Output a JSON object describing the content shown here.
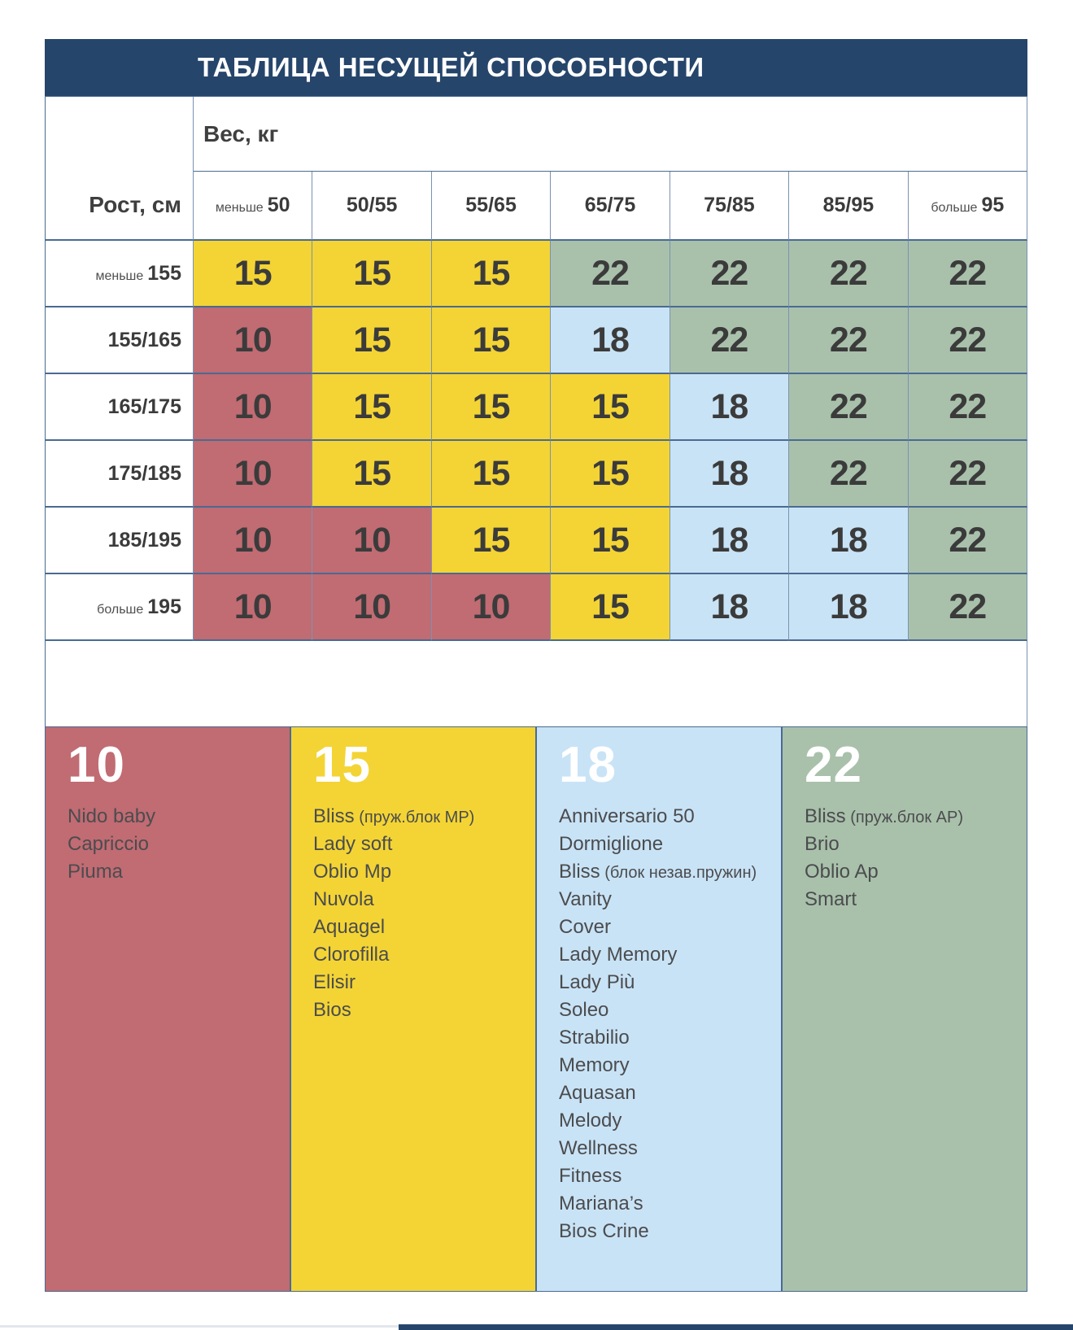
{
  "title": "ТАБЛИЦА НЕСУЩЕЙ СПОСОБНОСТИ",
  "colors": {
    "navy": "#26456b",
    "red": "#c16b73",
    "yellow": "#f3d434",
    "blue": "#c9e3f6",
    "green": "#a9c1ab",
    "grid_line": "#4a6a92",
    "cell_text": "#3b3b3b",
    "legend_text": "#4b4c4e",
    "bottom_bar": "#26456b"
  },
  "table": {
    "weight_header": "Вес, кг",
    "height_header": "Рост, см",
    "weight_cols": [
      {
        "prefix": "меньше",
        "value": "50"
      },
      {
        "value": "50/55"
      },
      {
        "value": "55/65"
      },
      {
        "value": "65/75"
      },
      {
        "value": "75/85"
      },
      {
        "value": "85/95"
      },
      {
        "prefix": "больше",
        "value": "95"
      }
    ],
    "rows": [
      {
        "label_prefix": "меньше",
        "label": "155",
        "cells": [
          {
            "v": "15",
            "c": "yellow"
          },
          {
            "v": "15",
            "c": "yellow"
          },
          {
            "v": "15",
            "c": "yellow"
          },
          {
            "v": "22",
            "c": "green"
          },
          {
            "v": "22",
            "c": "green"
          },
          {
            "v": "22",
            "c": "green"
          },
          {
            "v": "22",
            "c": "green"
          }
        ]
      },
      {
        "label": "155/165",
        "cells": [
          {
            "v": "10",
            "c": "red"
          },
          {
            "v": "15",
            "c": "yellow"
          },
          {
            "v": "15",
            "c": "yellow"
          },
          {
            "v": "18",
            "c": "blue"
          },
          {
            "v": "22",
            "c": "green"
          },
          {
            "v": "22",
            "c": "green"
          },
          {
            "v": "22",
            "c": "green"
          }
        ]
      },
      {
        "label": "165/175",
        "cells": [
          {
            "v": "10",
            "c": "red"
          },
          {
            "v": "15",
            "c": "yellow"
          },
          {
            "v": "15",
            "c": "yellow"
          },
          {
            "v": "15",
            "c": "yellow"
          },
          {
            "v": "18",
            "c": "blue"
          },
          {
            "v": "22",
            "c": "green"
          },
          {
            "v": "22",
            "c": "green"
          }
        ]
      },
      {
        "label": "175/185",
        "cells": [
          {
            "v": "10",
            "c": "red"
          },
          {
            "v": "15",
            "c": "yellow"
          },
          {
            "v": "15",
            "c": "yellow"
          },
          {
            "v": "15",
            "c": "yellow"
          },
          {
            "v": "18",
            "c": "blue"
          },
          {
            "v": "22",
            "c": "green"
          },
          {
            "v": "22",
            "c": "green"
          }
        ]
      },
      {
        "label": "185/195",
        "cells": [
          {
            "v": "10",
            "c": "red"
          },
          {
            "v": "10",
            "c": "red"
          },
          {
            "v": "15",
            "c": "yellow"
          },
          {
            "v": "15",
            "c": "yellow"
          },
          {
            "v": "18",
            "c": "blue"
          },
          {
            "v": "18",
            "c": "blue"
          },
          {
            "v": "22",
            "c": "green"
          }
        ]
      },
      {
        "label_prefix": "больше",
        "label": "195",
        "cells": [
          {
            "v": "10",
            "c": "red"
          },
          {
            "v": "10",
            "c": "red"
          },
          {
            "v": "10",
            "c": "red"
          },
          {
            "v": "15",
            "c": "yellow"
          },
          {
            "v": "18",
            "c": "blue"
          },
          {
            "v": "18",
            "c": "blue"
          },
          {
            "v": "22",
            "c": "green"
          }
        ]
      }
    ]
  },
  "legend": [
    {
      "value": "10",
      "color": "red",
      "items": [
        {
          "name": "Nido baby"
        },
        {
          "name": "Capriccio"
        },
        {
          "name": "Piuma"
        }
      ]
    },
    {
      "value": "15",
      "color": "yellow",
      "items": [
        {
          "name": "Bliss",
          "note": "(пруж.блок MP)"
        },
        {
          "name": "Lady soft"
        },
        {
          "name": "Oblio Mp"
        },
        {
          "name": "Nuvola"
        },
        {
          "name": "Aquagel"
        },
        {
          "name": "Clorofilla"
        },
        {
          "name": "Elisir"
        },
        {
          "name": "Bios"
        }
      ]
    },
    {
      "value": "18",
      "color": "blue",
      "items": [
        {
          "name": "Anniversario 50"
        },
        {
          "name": "Dormiglione"
        },
        {
          "name": "Bliss",
          "note": "(блок незав.пружин)"
        },
        {
          "name": "Vanity"
        },
        {
          "name": "Cover"
        },
        {
          "name": "Lady Memory"
        },
        {
          "name": "Lady Più"
        },
        {
          "name": "Soleo"
        },
        {
          "name": "Strabilio"
        },
        {
          "name": "Memory"
        },
        {
          "name": "Aquasan"
        },
        {
          "name": "Melody"
        },
        {
          "name": "Wellness"
        },
        {
          "name": "Fitness"
        },
        {
          "name": "Mariana’s"
        },
        {
          "name": "Bios Crine"
        }
      ]
    },
    {
      "value": "22",
      "color": "green",
      "items": [
        {
          "name": "Bliss",
          "note": "(пруж.блок AP)"
        },
        {
          "name": "Brio"
        },
        {
          "name": "Oblio Ap"
        },
        {
          "name": "Smart"
        }
      ]
    }
  ],
  "chart_data": {
    "type": "heatmap",
    "title": "ТАБЛИЦА НЕСУЩЕЙ СПОСОБНОСТИ",
    "xlabel": "Вес, кг",
    "ylabel": "Рост, см",
    "x_categories": [
      "меньше 50",
      "50/55",
      "55/65",
      "65/75",
      "75/85",
      "85/95",
      "больше 95"
    ],
    "y_categories": [
      "меньше 155",
      "155/165",
      "165/175",
      "175/185",
      "185/195",
      "больше 195"
    ],
    "values": [
      [
        15,
        15,
        15,
        22,
        22,
        22,
        22
      ],
      [
        10,
        15,
        15,
        18,
        22,
        22,
        22
      ],
      [
        10,
        15,
        15,
        15,
        18,
        22,
        22
      ],
      [
        10,
        15,
        15,
        15,
        18,
        22,
        22
      ],
      [
        10,
        10,
        15,
        15,
        18,
        18,
        22
      ],
      [
        10,
        10,
        10,
        15,
        18,
        18,
        22
      ]
    ],
    "value_colors": {
      "10": "#c16b73",
      "15": "#f3d434",
      "18": "#c9e3f6",
      "22": "#a9c1ab"
    },
    "legend_position": "bottom",
    "grid": true
  }
}
